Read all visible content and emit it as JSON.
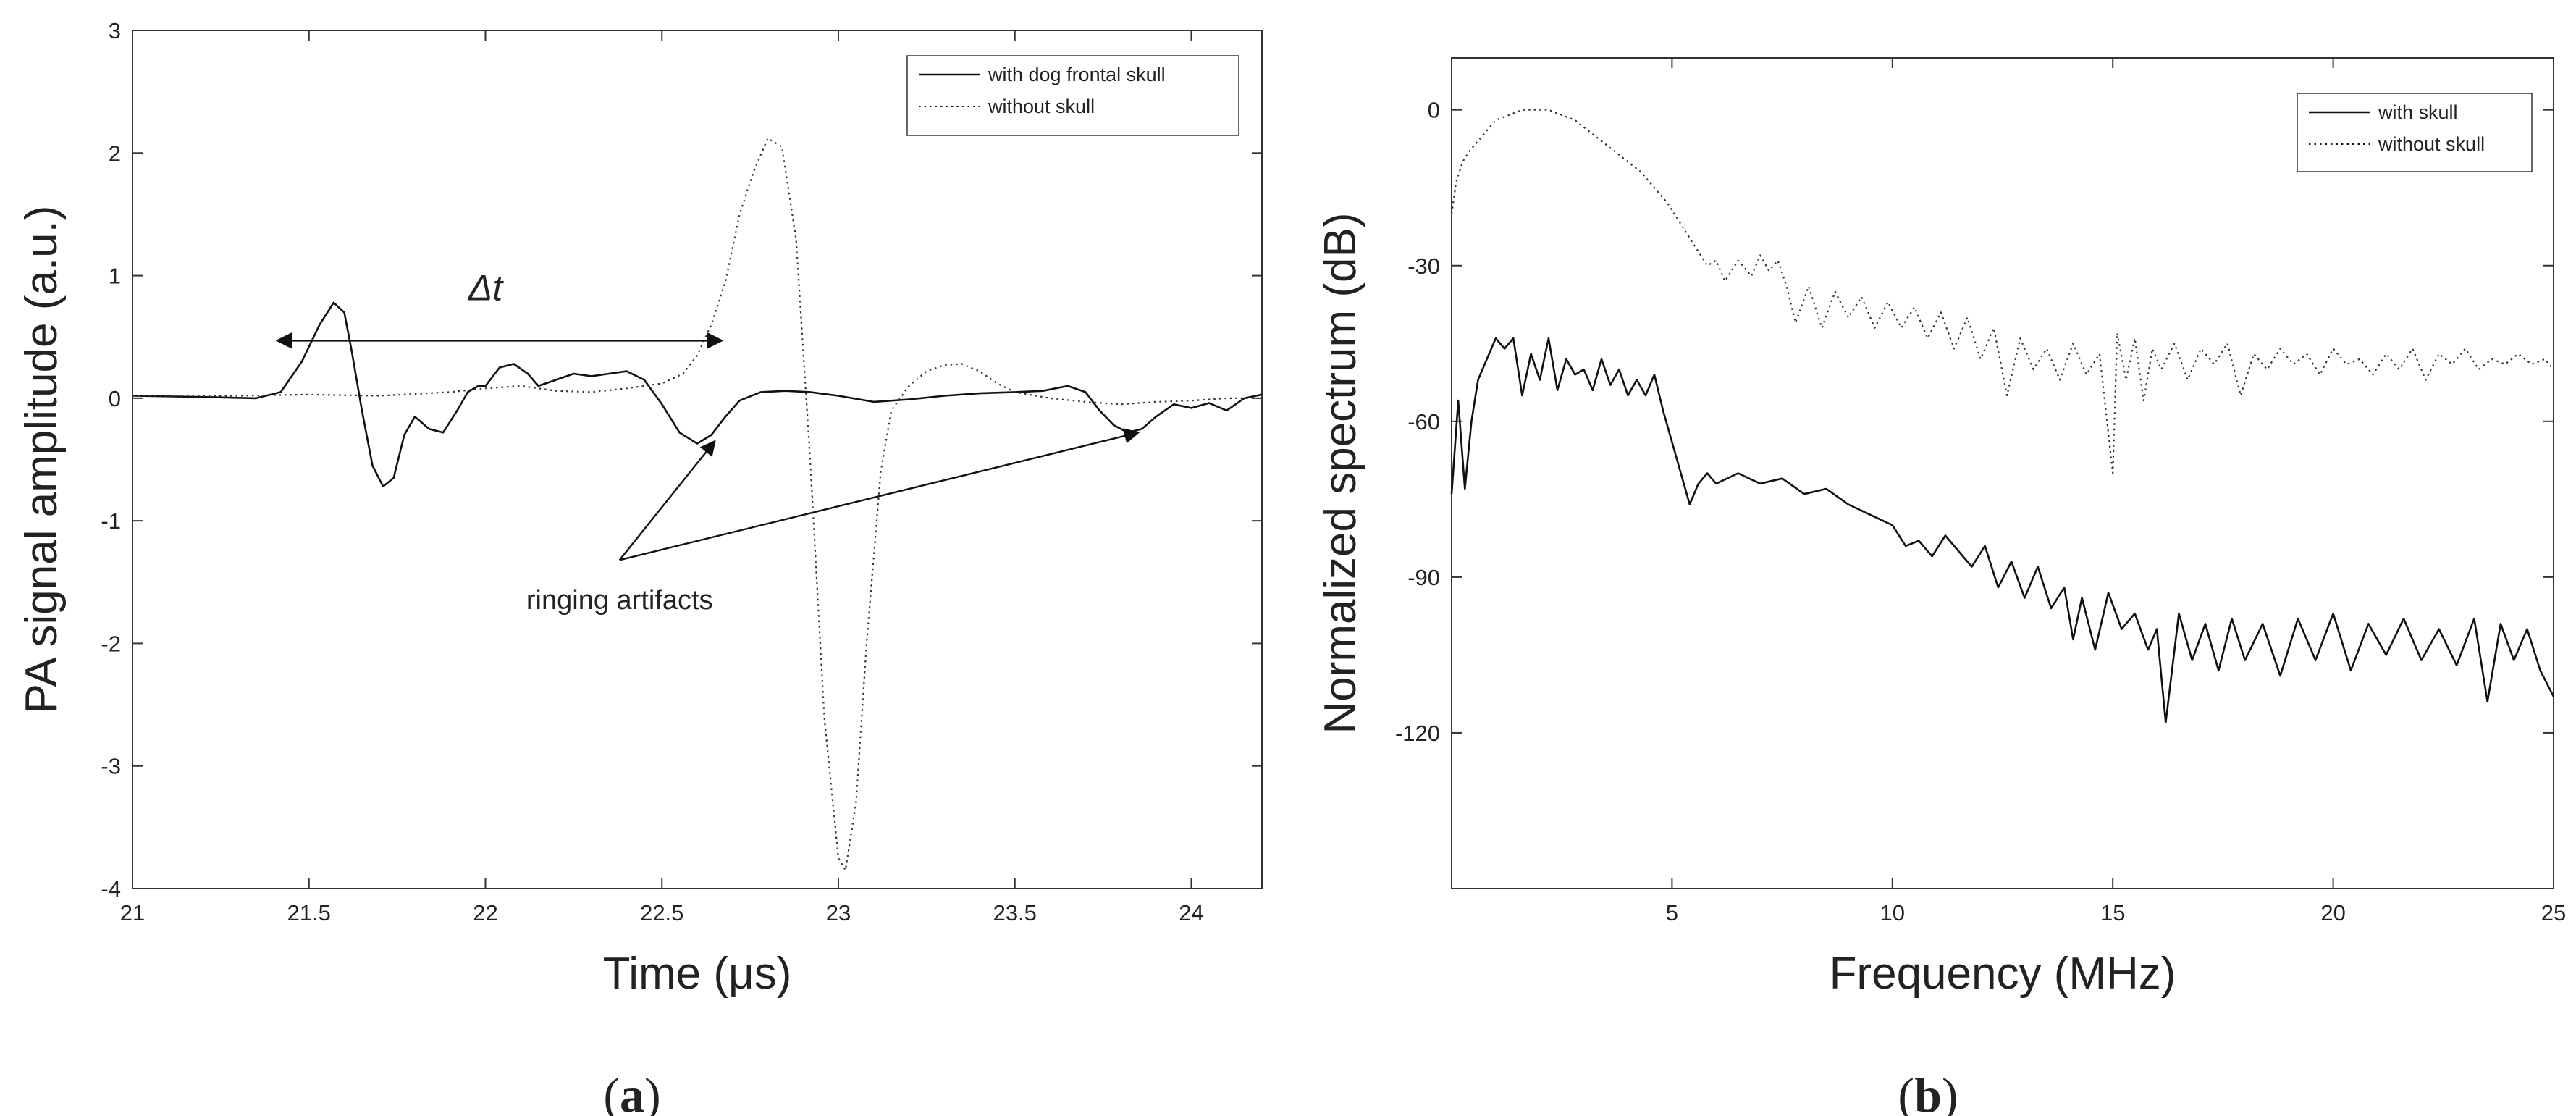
{
  "chart_data": [
    {
      "type": "line",
      "panel_label": "a",
      "xlabel": "Time (μs)",
      "ylabel": "PA signal amplitude (a.u.)",
      "xlim": [
        21,
        24.2
      ],
      "ylim": [
        -4,
        3
      ],
      "xticks": [
        "21",
        "21.5",
        "22",
        "22.5",
        "23",
        "23.5",
        "24"
      ],
      "yticks": [
        "-4",
        "-3",
        "-2",
        "-1",
        "0",
        "1",
        "2",
        "3"
      ],
      "grid": false,
      "legend_position": "top-right",
      "annotations": {
        "delta": "Δt",
        "ringing": "ringing artifacts"
      },
      "series": [
        {
          "name": "with dog frontal skull",
          "style": "solid",
          "x": [
            21.0,
            21.2,
            21.35,
            21.42,
            21.48,
            21.53,
            21.57,
            21.6,
            21.62,
            21.65,
            21.68,
            21.71,
            21.74,
            21.77,
            21.8,
            21.84,
            21.88,
            21.92,
            21.95,
            21.98,
            22.0,
            22.04,
            22.08,
            22.12,
            22.15,
            22.2,
            22.25,
            22.3,
            22.35,
            22.4,
            22.45,
            22.5,
            22.55,
            22.6,
            22.64,
            22.68,
            22.72,
            22.78,
            22.85,
            22.92,
            23.0,
            23.1,
            23.2,
            23.3,
            23.4,
            23.5,
            23.58,
            23.65,
            23.7,
            23.74,
            23.78,
            23.82,
            23.86,
            23.9,
            23.95,
            24.0,
            24.05,
            24.1,
            24.15,
            24.2
          ],
          "y": [
            0.02,
            0.01,
            0.0,
            0.05,
            0.3,
            0.6,
            0.78,
            0.7,
            0.4,
            -0.1,
            -0.55,
            -0.72,
            -0.65,
            -0.3,
            -0.15,
            -0.25,
            -0.28,
            -0.1,
            0.05,
            0.1,
            0.1,
            0.25,
            0.28,
            0.2,
            0.1,
            0.15,
            0.2,
            0.18,
            0.2,
            0.22,
            0.15,
            -0.05,
            -0.28,
            -0.37,
            -0.3,
            -0.15,
            -0.02,
            0.05,
            0.06,
            0.05,
            0.02,
            -0.03,
            -0.01,
            0.02,
            0.04,
            0.05,
            0.06,
            0.1,
            0.05,
            -0.1,
            -0.22,
            -0.28,
            -0.25,
            -0.15,
            -0.05,
            -0.08,
            -0.04,
            -0.1,
            0.0,
            0.03
          ]
        },
        {
          "name": "without skull",
          "style": "dotted",
          "x": [
            21.0,
            21.3,
            21.5,
            21.7,
            21.9,
            22.0,
            22.1,
            22.2,
            22.3,
            22.4,
            22.5,
            22.56,
            22.6,
            22.64,
            22.68,
            22.72,
            22.76,
            22.8,
            22.84,
            22.88,
            22.92,
            22.96,
            23.0,
            23.02,
            23.05,
            23.08,
            23.12,
            23.15,
            23.2,
            23.25,
            23.3,
            23.35,
            23.4,
            23.45,
            23.5,
            23.6,
            23.7,
            23.8,
            23.9,
            24.0,
            24.1,
            24.2
          ],
          "y": [
            0.02,
            0.02,
            0.03,
            0.02,
            0.05,
            0.08,
            0.1,
            0.06,
            0.05,
            0.08,
            0.12,
            0.2,
            0.35,
            0.6,
            0.95,
            1.5,
            1.85,
            2.12,
            2.05,
            1.3,
            -0.5,
            -2.6,
            -3.75,
            -3.85,
            -3.3,
            -2.0,
            -0.6,
            -0.1,
            0.1,
            0.22,
            0.27,
            0.28,
            0.22,
            0.12,
            0.05,
            0.0,
            -0.03,
            -0.05,
            -0.03,
            -0.02,
            0.0,
            0.0
          ]
        }
      ]
    },
    {
      "type": "line",
      "panel_label": "b",
      "xlabel": "Frequency (MHz)",
      "ylabel": "Normalized spectrum (dB)",
      "xlim": [
        0,
        25
      ],
      "ylim": [
        -150,
        10
      ],
      "xticks": [
        "5",
        "10",
        "15",
        "20",
        "25"
      ],
      "yticks": [
        "0",
        "-30",
        "-60",
        "-90",
        "-120"
      ],
      "grid": false,
      "legend_position": "top-right",
      "series": [
        {
          "name": "with skull",
          "style": "solid",
          "x": [
            0.0,
            0.15,
            0.3,
            0.45,
            0.6,
            0.8,
            1.0,
            1.2,
            1.4,
            1.6,
            1.8,
            2.0,
            2.2,
            2.4,
            2.6,
            2.8,
            3.0,
            3.2,
            3.4,
            3.6,
            3.8,
            4.0,
            4.2,
            4.4,
            4.6,
            4.8,
            5.0,
            5.2,
            5.4,
            5.6,
            5.8,
            6.0,
            6.5,
            7.0,
            7.5,
            8.0,
            8.5,
            9.0,
            9.5,
            10.0,
            10.3,
            10.6,
            10.9,
            11.2,
            11.5,
            11.8,
            12.1,
            12.4,
            12.7,
            13.0,
            13.3,
            13.6,
            13.9,
            14.1,
            14.3,
            14.6,
            14.9,
            15.2,
            15.5,
            15.8,
            16.0,
            16.2,
            16.5,
            16.8,
            17.1,
            17.4,
            17.7,
            18.0,
            18.4,
            18.8,
            19.2,
            19.6,
            20.0,
            20.4,
            20.8,
            21.2,
            21.6,
            22.0,
            22.4,
            22.8,
            23.2,
            23.5,
            23.8,
            24.1,
            24.4,
            24.7,
            25.0
          ],
          "y": [
            -74,
            -56,
            -73,
            -60,
            -52,
            -48,
            -44,
            -46,
            -44,
            -55,
            -47,
            -52,
            -44,
            -54,
            -48,
            -51,
            -50,
            -54,
            -48,
            -53,
            -50,
            -55,
            -52,
            -55,
            -51,
            -58,
            -64,
            -70,
            -76,
            -72,
            -70,
            -72,
            -70,
            -72,
            -71,
            -74,
            -73,
            -76,
            -78,
            -80,
            -84,
            -83,
            -86,
            -82,
            -85,
            -88,
            -84,
            -92,
            -87,
            -94,
            -88,
            -96,
            -92,
            -102,
            -94,
            -104,
            -93,
            -100,
            -97,
            -104,
            -100,
            -118,
            -97,
            -106,
            -99,
            -108,
            -98,
            -106,
            -99,
            -109,
            -98,
            -106,
            -97,
            -108,
            -99,
            -105,
            -98,
            -106,
            -100,
            -107,
            -98,
            -114,
            -99,
            -106,
            -100,
            -108,
            -113
          ]
        },
        {
          "name": "without skull",
          "style": "dotted",
          "x": [
            0.0,
            0.1,
            0.25,
            0.4,
            0.6,
            0.8,
            1.0,
            1.3,
            1.6,
            1.9,
            2.2,
            2.5,
            2.8,
            3.1,
            3.4,
            3.7,
            4.0,
            4.3,
            4.6,
            4.9,
            5.2,
            5.5,
            5.8,
            6.0,
            6.2,
            6.5,
            6.8,
            7.0,
            7.2,
            7.4,
            7.6,
            7.8,
            8.1,
            8.4,
            8.7,
            9.0,
            9.3,
            9.6,
            9.9,
            10.2,
            10.5,
            10.8,
            11.1,
            11.4,
            11.7,
            12.0,
            12.3,
            12.6,
            12.9,
            13.2,
            13.5,
            13.8,
            14.1,
            14.4,
            14.7,
            15.0,
            15.1,
            15.3,
            15.5,
            15.7,
            15.9,
            16.1,
            16.4,
            16.7,
            17.0,
            17.3,
            17.6,
            17.9,
            18.2,
            18.5,
            18.8,
            19.1,
            19.4,
            19.7,
            20.0,
            20.3,
            20.6,
            20.9,
            21.2,
            21.5,
            21.8,
            22.1,
            22.4,
            22.7,
            23.0,
            23.3,
            23.6,
            23.9,
            24.2,
            24.5,
            24.8,
            25.0
          ],
          "y": [
            -20,
            -14,
            -10,
            -8,
            -6,
            -4,
            -2,
            -1,
            0,
            0,
            0,
            -1,
            -2,
            -4,
            -6,
            -8,
            -10,
            -12,
            -15,
            -18,
            -22,
            -26,
            -30,
            -29,
            -33,
            -29,
            -32,
            -28,
            -31,
            -29,
            -34,
            -41,
            -34,
            -42,
            -35,
            -40,
            -36,
            -42,
            -37,
            -42,
            -38,
            -44,
            -39,
            -46,
            -40,
            -48,
            -42,
            -55,
            -44,
            -50,
            -46,
            -52,
            -45,
            -51,
            -47,
            -70,
            -43,
            -52,
            -44,
            -56,
            -46,
            -50,
            -45,
            -52,
            -46,
            -49,
            -45,
            -55,
            -47,
            -50,
            -46,
            -49,
            -47,
            -51,
            -46,
            -49,
            -48,
            -51,
            -47,
            -50,
            -46,
            -52,
            -47,
            -49,
            -46,
            -50,
            -48,
            -49,
            -47,
            -49,
            -48,
            -50
          ]
        }
      ]
    }
  ]
}
